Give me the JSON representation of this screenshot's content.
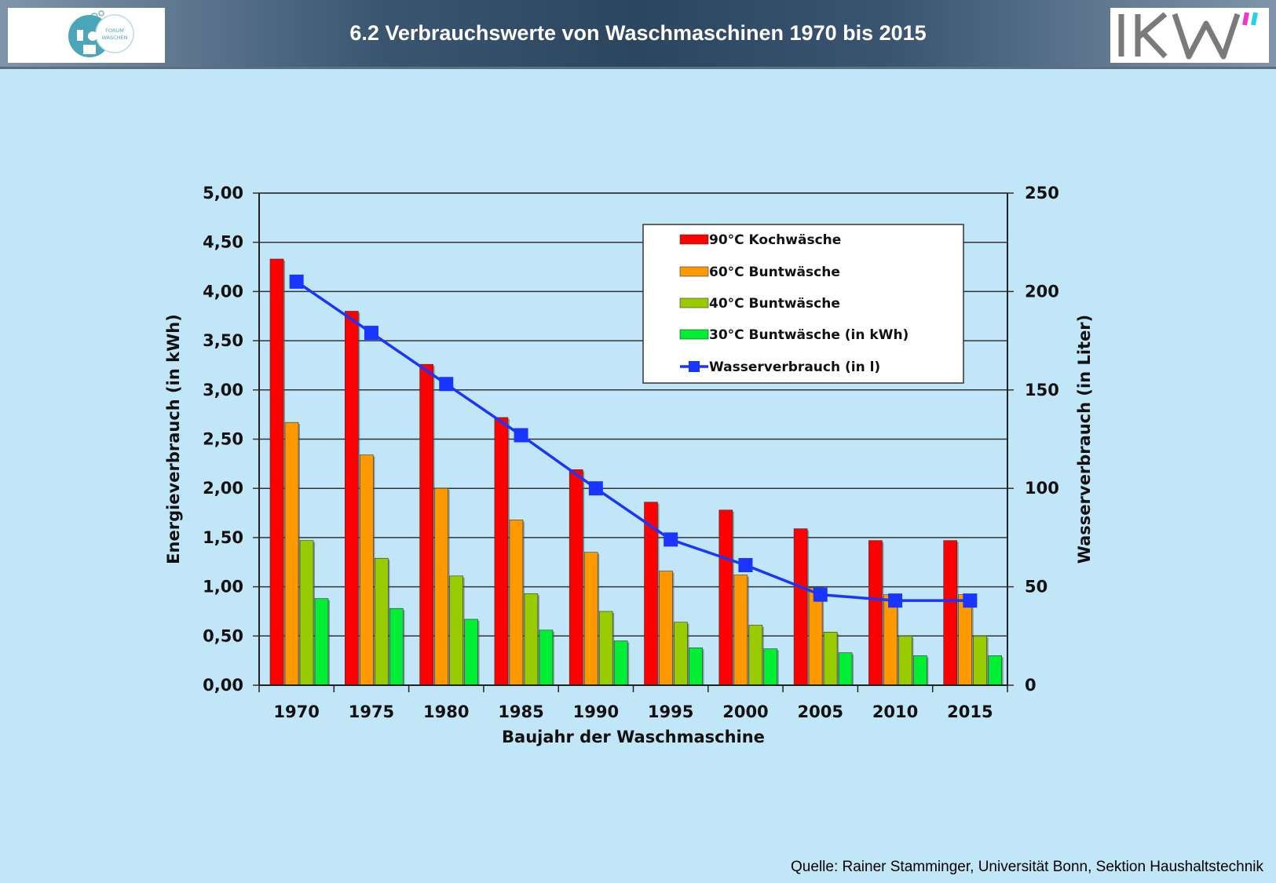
{
  "header": {
    "title": "6.2 Verbrauchswerte von Waschmaschinen 1970 bis 2015",
    "logo_left_text_1": "FORUM",
    "logo_left_text_2": "WASCHEN",
    "logo_left_icon": "forum-waschen-logo-icon",
    "logo_right_text": "IKW",
    "logo_right_icon": "ikw-logo-icon"
  },
  "footer": {
    "source": "Quelle: Rainer Stamminger, Universität Bonn, Sektion Haushaltstechnik"
  },
  "colors": {
    "background": "#c0e6f8",
    "plot_background": "#c0e6f8",
    "series_90": "#ff0000",
    "series_60": "#ff9900",
    "series_40": "#99cc00",
    "series_30": "#00ee33",
    "water_line": "#1a35ff",
    "logo_ikw_accent_1": "#e83cc8",
    "logo_ikw_accent_2": "#22d4e8"
  },
  "chart_data": {
    "type": "bar",
    "categories": [
      "1970",
      "1975",
      "1980",
      "1985",
      "1990",
      "1995",
      "2000",
      "2005",
      "2010",
      "2015"
    ],
    "series": [
      {
        "name": "90°C Kochwäsche",
        "axis": "left",
        "type": "bar",
        "values": [
          4.33,
          3.8,
          3.26,
          2.72,
          2.19,
          1.86,
          1.78,
          1.59,
          1.47,
          1.47
        ]
      },
      {
        "name": "60°C Buntwäsche",
        "axis": "left",
        "type": "bar",
        "values": [
          2.67,
          2.34,
          2.0,
          1.68,
          1.35,
          1.16,
          1.12,
          0.99,
          0.92,
          0.92
        ]
      },
      {
        "name": "40°C Buntwäsche",
        "axis": "left",
        "type": "bar",
        "values": [
          1.47,
          1.29,
          1.11,
          0.93,
          0.75,
          0.64,
          0.61,
          0.54,
          0.5,
          0.5
        ]
      },
      {
        "name": "30°C Buntwäsche (in kWh)",
        "axis": "left",
        "type": "bar",
        "values": [
          0.88,
          0.78,
          0.67,
          0.56,
          0.45,
          0.38,
          0.37,
          0.33,
          0.3,
          0.3
        ]
      },
      {
        "name": "Wasserverbrauch (in l)",
        "axis": "right",
        "type": "line",
        "values": [
          205,
          179,
          153,
          127,
          100,
          74,
          61,
          46,
          43,
          43
        ]
      }
    ],
    "xlabel": "Baujahr der Waschmaschine",
    "ylabel": "Energieverbrauch  (in kWh)",
    "y2label": "Wasserverbrauch  (in Liter)",
    "ylim": [
      0,
      5
    ],
    "y2lim": [
      0,
      250
    ],
    "yticks": [
      "0,00",
      "0,50",
      "1,00",
      "1,50",
      "2,00",
      "2,50",
      "3,00",
      "3,50",
      "4,00",
      "4,50",
      "5,00"
    ],
    "y2ticks": [
      "0",
      "50",
      "100",
      "150",
      "200",
      "250"
    ],
    "grid": true,
    "legend": "top-right"
  }
}
